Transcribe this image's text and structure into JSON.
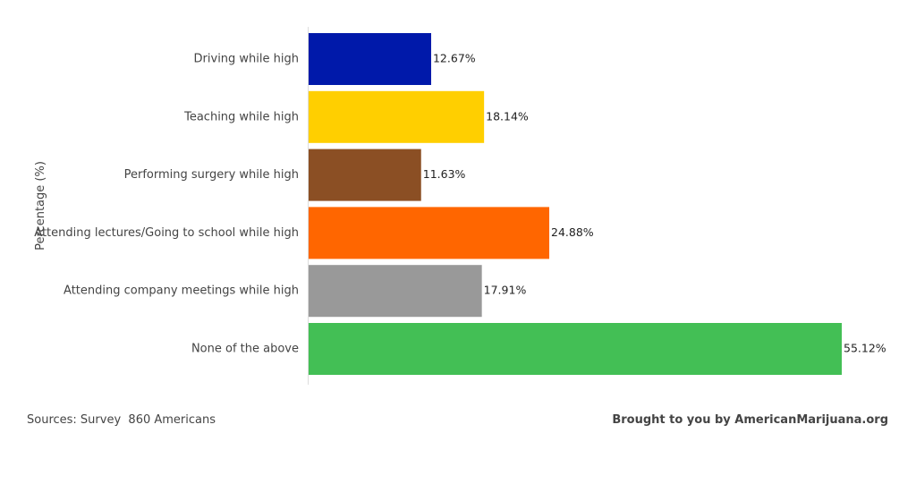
{
  "chart_data": {
    "type": "bar",
    "orientation": "horizontal",
    "categories": [
      "Driving while high",
      "Teaching while high",
      "Performing surgery while high",
      "Attending lectures/Going to school while high",
      "Attending company meetings while high",
      "None of the above"
    ],
    "values": [
      12.67,
      18.14,
      11.63,
      24.88,
      17.91,
      55.12
    ],
    "value_labels": [
      "12.67%",
      "18.14%",
      "11.63%",
      "24.88%",
      "17.91%",
      "55.12%"
    ],
    "colors": [
      "#0019aa",
      "#ffcf00",
      "#8b4f24",
      "#ff6600",
      "#999999",
      "#43bf55"
    ],
    "ylabel": "Percentage (%)",
    "xlim": [
      0,
      55.12
    ],
    "grid": false
  },
  "footer": {
    "source": "Sources: Survey  860 Americans",
    "brand": "Brought to you by AmericanMarijuana.org"
  }
}
